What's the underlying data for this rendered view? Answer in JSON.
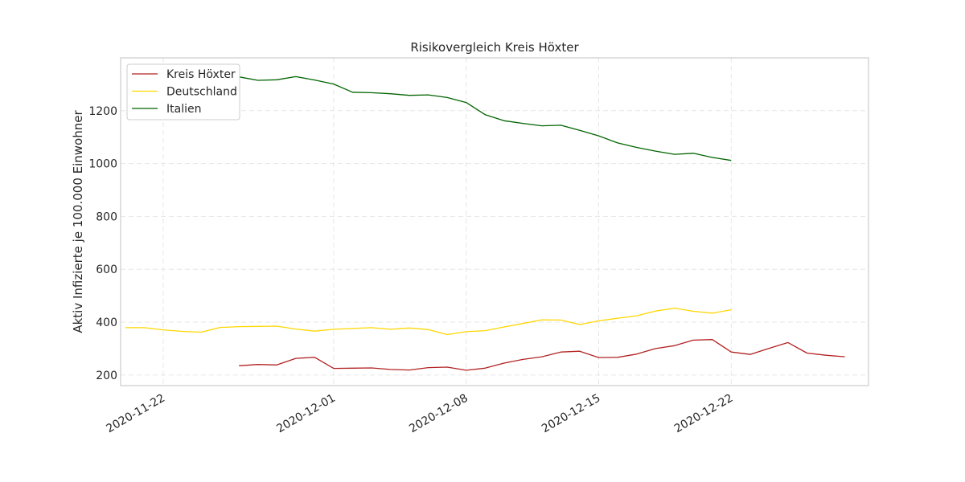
{
  "chart_data": {
    "type": "line",
    "title": "Risikovergleich Kreis Höxter",
    "xlabel": "",
    "ylabel": "Aktiv Infizierte je 100.000 Einwohner",
    "x_ticks": [
      "2020-11-22",
      "2020-12-01",
      "2020-12-08",
      "2020-12-15",
      "2020-12-22"
    ],
    "y_ticks": [
      200,
      400,
      600,
      800,
      1000,
      1200
    ],
    "xlim": [
      "2020-11-19T18:00",
      "2020-12-29T06:00"
    ],
    "ylim": [
      160,
      1400
    ],
    "grid": true,
    "legend_position": "top-left",
    "series": [
      {
        "name": "Kreis Höxter",
        "color": "#b22222",
        "x": [
          "2020-11-26",
          "2020-11-27",
          "2020-11-28",
          "2020-11-29",
          "2020-11-30",
          "2020-12-01",
          "2020-12-02",
          "2020-12-03",
          "2020-12-04",
          "2020-12-05",
          "2020-12-06",
          "2020-12-07",
          "2020-12-08",
          "2020-12-09",
          "2020-12-10",
          "2020-12-11",
          "2020-12-12",
          "2020-12-13",
          "2020-12-14",
          "2020-12-15",
          "2020-12-16",
          "2020-12-17",
          "2020-12-18",
          "2020-12-19",
          "2020-12-20",
          "2020-12-21",
          "2020-12-22",
          "2020-12-23",
          "2020-12-24",
          "2020-12-25",
          "2020-12-26",
          "2020-12-27",
          "2020-12-28"
        ],
        "values": [
          235,
          240,
          238,
          263,
          267,
          225,
          226,
          227,
          221,
          219,
          228,
          230,
          218,
          226,
          245,
          259,
          269,
          287,
          290,
          266,
          267,
          279,
          300,
          311,
          332,
          334,
          287,
          278,
          301,
          323,
          283,
          275,
          269
        ]
      },
      {
        "name": "Deutschland",
        "color": "#ffd700",
        "x": [
          "2020-11-20",
          "2020-11-21",
          "2020-11-22",
          "2020-11-23",
          "2020-11-24",
          "2020-11-25",
          "2020-11-26",
          "2020-11-27",
          "2020-11-28",
          "2020-11-29",
          "2020-11-30",
          "2020-12-01",
          "2020-12-02",
          "2020-12-03",
          "2020-12-04",
          "2020-12-05",
          "2020-12-06",
          "2020-12-07",
          "2020-12-08",
          "2020-12-09",
          "2020-12-10",
          "2020-12-11",
          "2020-12-12",
          "2020-12-13",
          "2020-12-14",
          "2020-12-15",
          "2020-12-16",
          "2020-12-17",
          "2020-12-18",
          "2020-12-19",
          "2020-12-20",
          "2020-12-21",
          "2020-12-22"
        ],
        "values": [
          379,
          379,
          371,
          365,
          362,
          380,
          383,
          384,
          385,
          374,
          366,
          373,
          376,
          379,
          373,
          378,
          372,
          353,
          364,
          368,
          382,
          395,
          409,
          408,
          391,
          405,
          415,
          424,
          442,
          453,
          441,
          434,
          447
        ]
      },
      {
        "name": "Italien",
        "color": "#006400",
        "x": [
          "2020-11-25",
          "2020-11-26",
          "2020-11-27",
          "2020-11-28",
          "2020-11-29",
          "2020-11-30",
          "2020-12-01",
          "2020-12-02",
          "2020-12-03",
          "2020-12-04",
          "2020-12-05",
          "2020-12-06",
          "2020-12-07",
          "2020-12-08",
          "2020-12-09",
          "2020-12-10",
          "2020-12-11",
          "2020-12-12",
          "2020-12-13",
          "2020-12-14",
          "2020-12-15",
          "2020-12-16",
          "2020-12-17",
          "2020-12-18",
          "2020-12-19",
          "2020-12-20",
          "2020-12-21",
          "2020-12-22"
        ],
        "values": [
          1320,
          1328,
          1315,
          1317,
          1329,
          1316,
          1301,
          1270,
          1268,
          1264,
          1258,
          1260,
          1250,
          1231,
          1185,
          1162,
          1152,
          1143,
          1145,
          1126,
          1105,
          1078,
          1061,
          1047,
          1035,
          1039,
          1023,
          1012
        ]
      }
    ]
  }
}
